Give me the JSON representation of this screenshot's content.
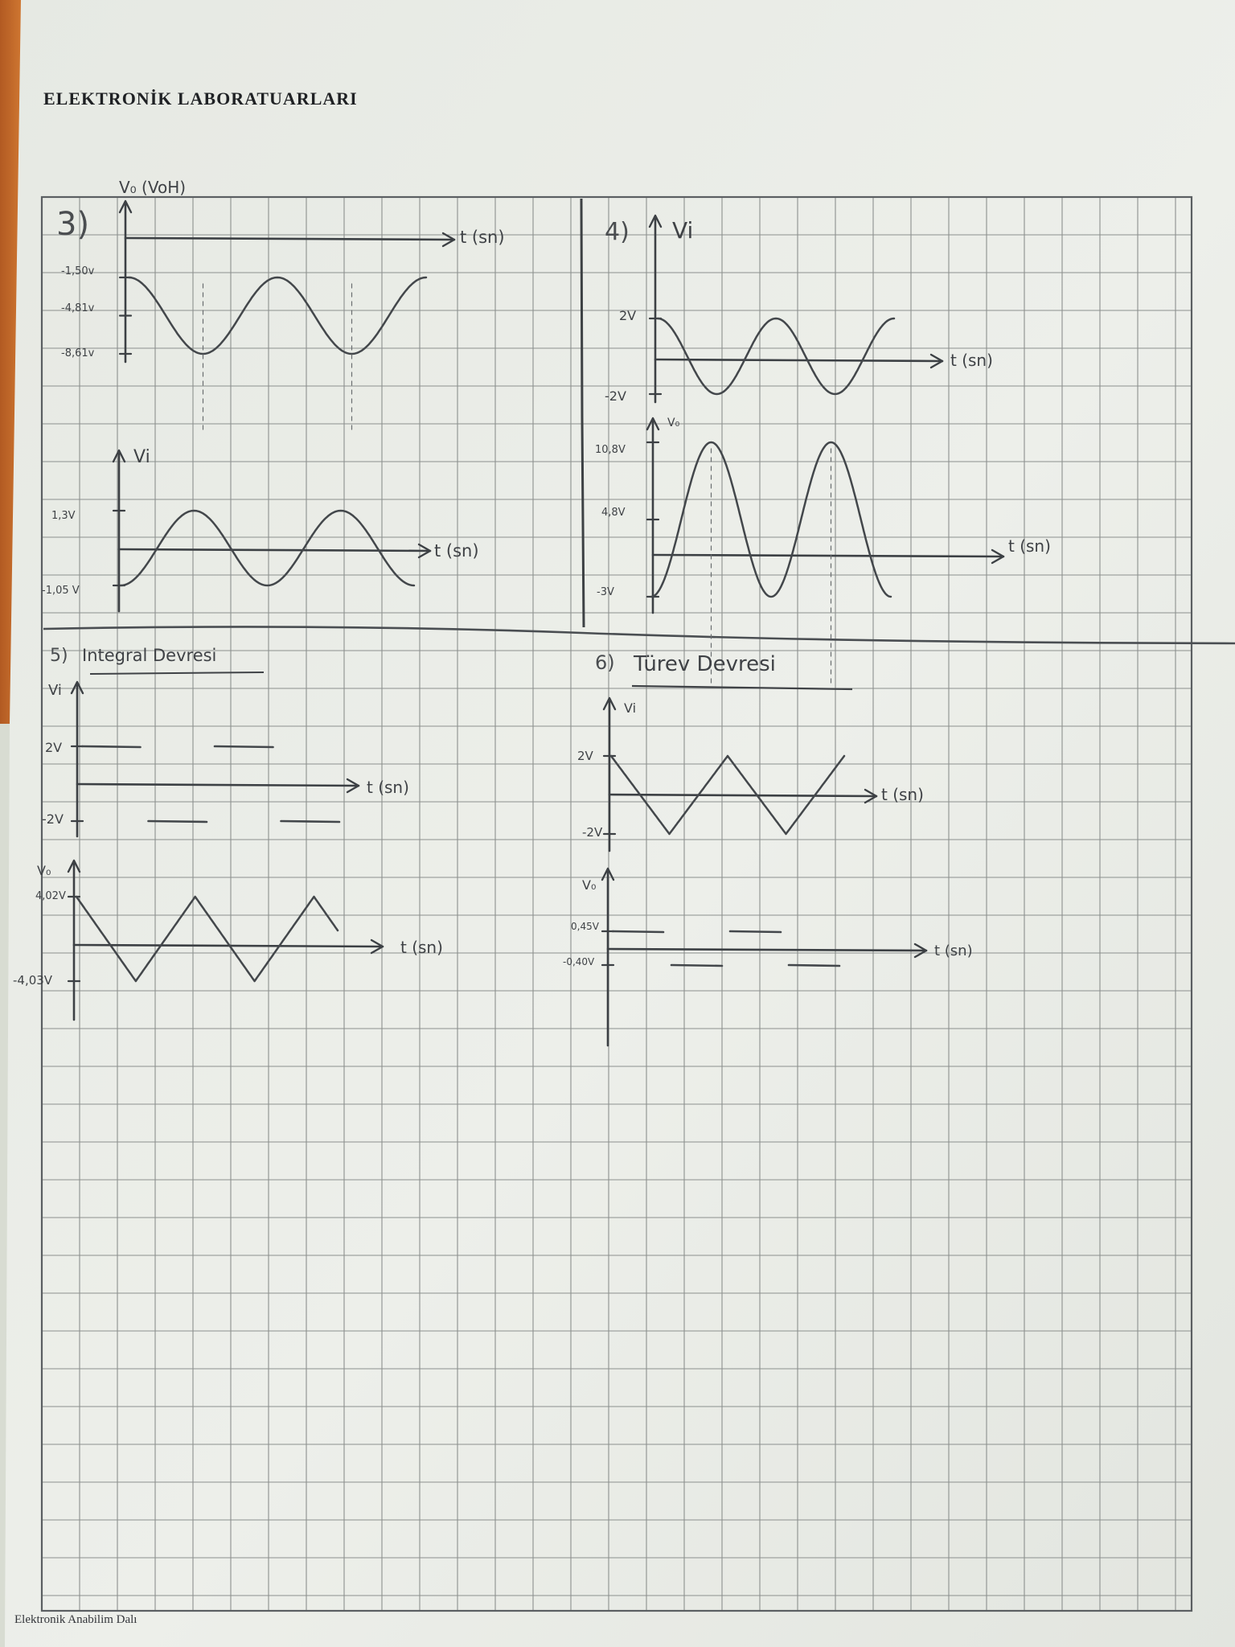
{
  "document": {
    "header": "ELEKTRONİK LABORATUARLARI",
    "footer": "Elektronik Anabilim Dalı"
  },
  "sections": [
    {
      "number": "3)",
      "title": ""
    },
    {
      "number": "4)",
      "title": ""
    },
    {
      "number": "5)",
      "title": "Integral Devresi"
    },
    {
      "number": "6)",
      "title": "Türev Devresi"
    }
  ],
  "chart_data": [
    {
      "type": "line",
      "section": "3",
      "ylabel": "V₀ (VoH)",
      "xlabel": "t (sn)",
      "y_tick_labels": [
        "-1,50v",
        "-4,81v",
        "-8,61v"
      ],
      "waveform": "sine",
      "y_max": -1.5,
      "y_min": -8.61
    },
    {
      "type": "line",
      "section": "3",
      "ylabel": "Vi",
      "xlabel": "t (sn)",
      "y_tick_labels": [
        "1,3V",
        "-1,05 V"
      ],
      "waveform": "sine",
      "y_max": 1.3,
      "y_min": -1.05
    },
    {
      "type": "line",
      "section": "4",
      "ylabel": "Vi",
      "xlabel": "t (sn)",
      "y_tick_labels": [
        "2V",
        "-2V"
      ],
      "waveform": "sine",
      "y_max": 2,
      "y_min": -2
    },
    {
      "type": "line",
      "section": "4",
      "ylabel": "V₀",
      "xlabel": "t (sn)",
      "y_tick_labels": [
        "10,8V",
        "4,8V",
        "-3V"
      ],
      "waveform": "sine",
      "y_max": 10.8,
      "y_min": -3
    },
    {
      "type": "line",
      "section": "5",
      "ylabel": "Vi",
      "xlabel": "t (sn)",
      "y_tick_labels": [
        "2V",
        "-2V"
      ],
      "waveform": "square",
      "y_max": 2,
      "y_min": -2
    },
    {
      "type": "line",
      "section": "5",
      "ylabel": "V₀",
      "xlabel": "t (sn)",
      "y_tick_labels": [
        "4,02V",
        "-4,03V"
      ],
      "waveform": "triangle",
      "y_max": 4.02,
      "y_min": -4.03
    },
    {
      "type": "line",
      "section": "6",
      "ylabel": "Vi",
      "xlabel": "t (sn)",
      "y_tick_labels": [
        "2V",
        "-2V"
      ],
      "waveform": "triangle",
      "y_max": 2,
      "y_min": -2
    },
    {
      "type": "line",
      "section": "6",
      "ylabel": "V₀",
      "xlabel": "t (sn)",
      "y_tick_labels": [
        "0,45V",
        "-0,40V"
      ],
      "waveform": "square",
      "y_max": 0.45,
      "y_min": -0.4
    }
  ]
}
